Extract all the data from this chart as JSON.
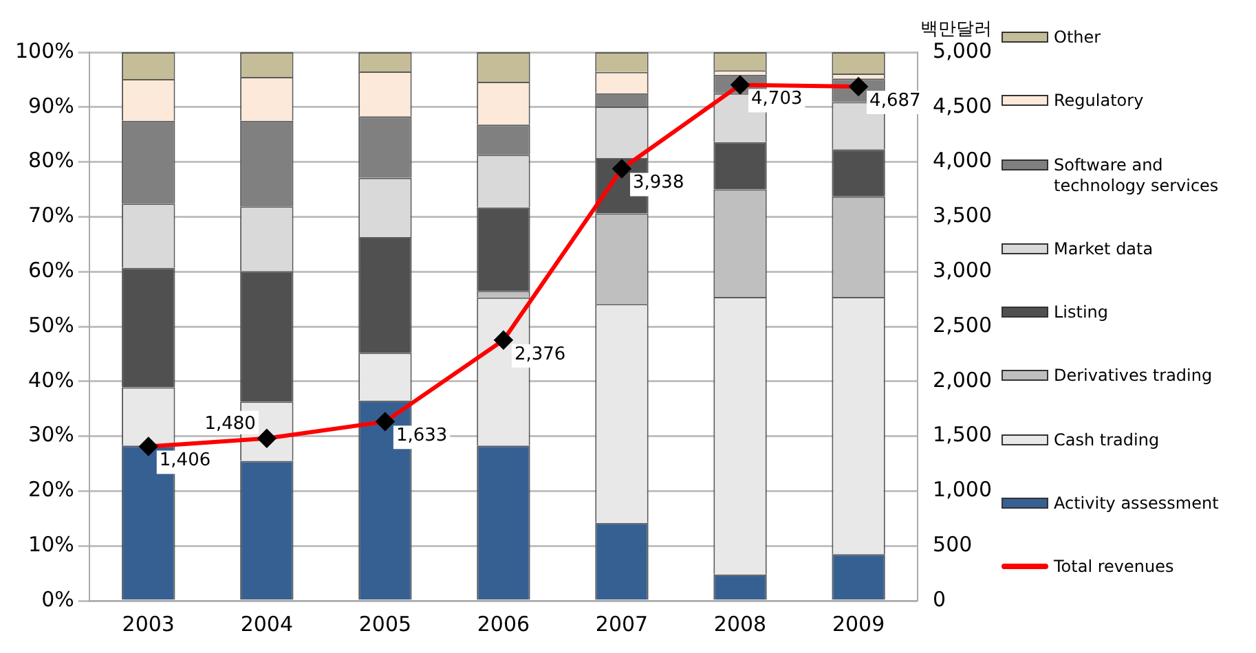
{
  "chart_data": {
    "type": "bar",
    "stacked": true,
    "categories": [
      "2003",
      "2004",
      "2005",
      "2006",
      "2007",
      "2008",
      "2009"
    ],
    "y2label": "백만달러",
    "ylim": [
      0,
      100
    ],
    "yticks": [
      {
        "value": 0,
        "label": "0%"
      },
      {
        "value": 10,
        "label": "10%"
      },
      {
        "value": 20,
        "label": "20%"
      },
      {
        "value": 30,
        "label": "30%"
      },
      {
        "value": 40,
        "label": "40%"
      },
      {
        "value": 50,
        "label": "50%"
      },
      {
        "value": 60,
        "label": "60%"
      },
      {
        "value": 70,
        "label": "70%"
      },
      {
        "value": 80,
        "label": "80%"
      },
      {
        "value": 90,
        "label": "90%"
      },
      {
        "value": 100,
        "label": "100%"
      }
    ],
    "y2lim": [
      0,
      5000
    ],
    "y2ticks": [
      0,
      {
        "value": 500,
        "label": "500"
      },
      {
        "value": 1000,
        "label": "1,000"
      },
      {
        "value": 1500,
        "label": "1,500"
      },
      {
        "value": 2000,
        "label": "2,000"
      },
      {
        "value": 2500,
        "label": "2,500"
      },
      {
        "value": 3000,
        "label": "3,000"
      },
      {
        "value": 3500,
        "label": "3,500"
      },
      {
        "value": 4000,
        "label": "4,000"
      },
      {
        "value": 4500,
        "label": "4,500"
      },
      {
        "value": 5000,
        "label": "5,000"
      }
    ],
    "grid": "y",
    "legend": "right",
    "series": [
      {
        "name": "Activity assessment",
        "color": "#376092",
        "values": [
          28.3,
          25.5,
          36.5,
          28.3,
          14.2,
          4.8,
          8.5
        ]
      },
      {
        "name": "Cash trading",
        "color": "#e8e8e8",
        "values": [
          10.6,
          10.8,
          8.7,
          27.0,
          39.9,
          50.6,
          46.9
        ]
      },
      {
        "name": "Derivatives trading",
        "color": "#bfbfbf",
        "values": [
          0,
          0,
          0,
          1.2,
          16.5,
          19.6,
          18.3
        ]
      },
      {
        "name": "Listing",
        "color": "#505050",
        "values": [
          21.8,
          23.8,
          21.1,
          15.2,
          10.1,
          8.6,
          8.6
        ]
      },
      {
        "name": "Market data",
        "color": "#d9d9d9",
        "values": [
          11.7,
          11.8,
          10.8,
          9.6,
          9.4,
          8.9,
          8.6
        ]
      },
      {
        "name": "Software and technology services",
        "color": "#808080",
        "values": [
          15.1,
          15.6,
          11.2,
          5.5,
          2.4,
          3.4,
          4.3
        ]
      },
      {
        "name": "Regulatory",
        "color": "#fde9d9",
        "values": [
          7.6,
          8.0,
          8.2,
          7.8,
          3.9,
          0.8,
          0.9
        ]
      },
      {
        "name": "Other",
        "color": "#c4bd97",
        "values": [
          4.9,
          4.5,
          3.5,
          5.4,
          3.6,
          3.3,
          3.9
        ]
      },
      {
        "name": "Total revenues",
        "type": "line",
        "axis": "y2",
        "color": "#ff0000",
        "marker": "diamond",
        "values": [
          1406,
          1480,
          1633,
          2376,
          3938,
          4703,
          4687
        ],
        "value_labels": [
          "1,406",
          "1,480",
          "1,633",
          "2,376",
          "3,938",
          "4,703",
          "4,687"
        ]
      }
    ]
  }
}
